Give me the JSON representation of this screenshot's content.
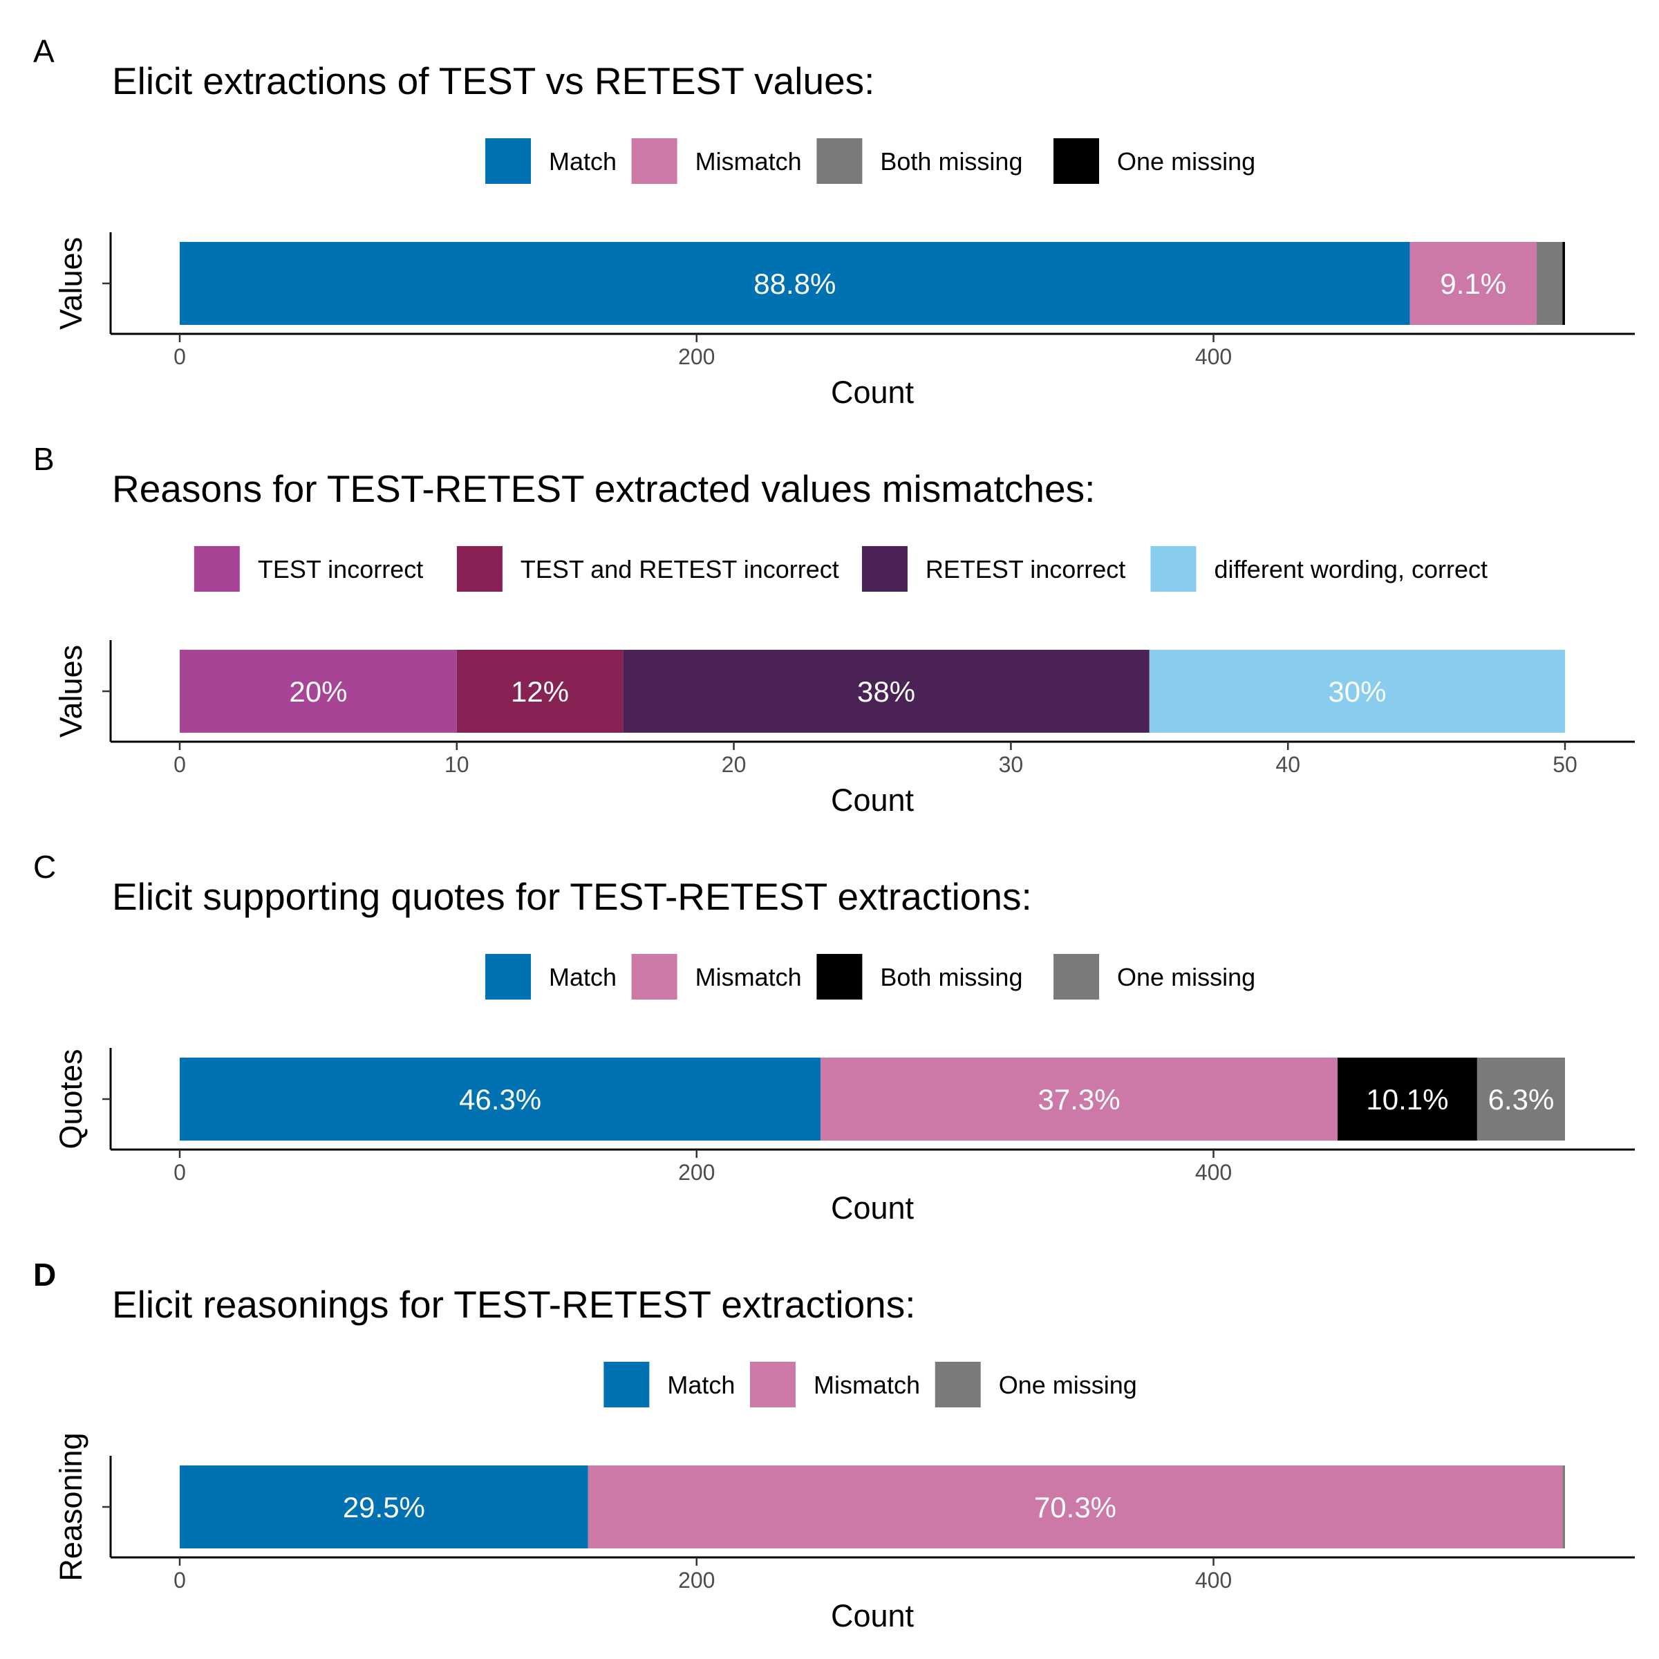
{
  "chart_data": [
    {
      "type": "bar",
      "orientation": "horizontal-stacked",
      "tag": "A",
      "title": "Elicit extractions of TEST vs RETEST values:",
      "category_label": "Values",
      "xlabel": "Count",
      "xlim": [
        0,
        550
      ],
      "xticks": [
        "0",
        "200",
        "400"
      ],
      "xtick_values": [
        0,
        200,
        400
      ],
      "legend_position": "top",
      "legend": [
        {
          "name": "Match",
          "color": "#0072B2"
        },
        {
          "name": "Mismatch",
          "color": "#CC79A7"
        },
        {
          "name": "Both missing",
          "color": "#7A7A7A"
        },
        {
          "name": "One missing",
          "color": "#000000"
        }
      ],
      "segments": [
        {
          "name": "Match",
          "value": 476,
          "label": "88.8%",
          "color": "#0072B2"
        },
        {
          "name": "Mismatch",
          "value": 49,
          "label": "9.1%",
          "color": "#CC79A7"
        },
        {
          "name": "Both missing",
          "value": 10,
          "label": "",
          "color": "#7A7A7A"
        },
        {
          "name": "One missing",
          "value": 1,
          "label": "",
          "color": "#000000"
        }
      ]
    },
    {
      "type": "bar",
      "orientation": "horizontal-stacked",
      "tag": "B",
      "title": "Reasons for TEST-RETEST extracted values mismatches:",
      "category_label": "Values",
      "xlabel": "Count",
      "xlim": [
        0,
        52.5
      ],
      "xticks": [
        "0",
        "10",
        "20",
        "30",
        "40",
        "50"
      ],
      "xtick_values": [
        0,
        10,
        20,
        30,
        40,
        50
      ],
      "legend_position": "top",
      "legend": [
        {
          "name": "TEST incorrect",
          "color": "#A84495"
        },
        {
          "name": "TEST and RETEST incorrect",
          "color": "#882255"
        },
        {
          "name": "RETEST incorrect",
          "color": "#4A2255"
        },
        {
          "name": "different wording, correct",
          "color": "#88CCEE"
        }
      ],
      "segments": [
        {
          "name": "TEST incorrect",
          "value": 10,
          "label": "20%",
          "color": "#A84495"
        },
        {
          "name": "TEST and RETEST incorrect",
          "value": 6,
          "label": "12%",
          "color": "#882255"
        },
        {
          "name": "RETEST incorrect",
          "value": 19,
          "label": "38%",
          "color": "#4A2255"
        },
        {
          "name": "different wording, correct",
          "value": 15,
          "label": "30%",
          "color": "#88CCEE"
        }
      ]
    },
    {
      "type": "bar",
      "orientation": "horizontal-stacked",
      "tag": "C",
      "title": "Elicit supporting quotes for TEST-RETEST extractions:",
      "category_label": "Quotes",
      "xlabel": "Count",
      "xlim": [
        0,
        550
      ],
      "xticks": [
        "0",
        "200",
        "400"
      ],
      "xtick_values": [
        0,
        200,
        400
      ],
      "legend_position": "top",
      "legend": [
        {
          "name": "Match",
          "color": "#0072B2"
        },
        {
          "name": "Mismatch",
          "color": "#CC79A7"
        },
        {
          "name": "Both missing",
          "color": "#000000"
        },
        {
          "name": "One missing",
          "color": "#7A7A7A"
        }
      ],
      "segments": [
        {
          "name": "Match",
          "value": 248,
          "label": "46.3%",
          "color": "#0072B2"
        },
        {
          "name": "Mismatch",
          "value": 200,
          "label": "37.3%",
          "color": "#CC79A7"
        },
        {
          "name": "Both missing",
          "value": 54,
          "label": "10.1%",
          "color": "#000000"
        },
        {
          "name": "One missing",
          "value": 34,
          "label": "6.3%",
          "color": "#7A7A7A"
        }
      ]
    },
    {
      "type": "bar",
      "orientation": "horizontal-stacked",
      "tag": "D",
      "title": "Elicit reasonings for TEST-RETEST extractions:",
      "category_label": "Reasoning",
      "xlabel": "Count",
      "xlim": [
        0,
        550
      ],
      "xticks": [
        "0",
        "200",
        "400"
      ],
      "xtick_values": [
        0,
        200,
        400
      ],
      "legend_position": "top",
      "legend": [
        {
          "name": "Match",
          "color": "#0072B2"
        },
        {
          "name": "Mismatch",
          "color": "#CC79A7"
        },
        {
          "name": "One missing",
          "color": "#7A7A7A"
        }
      ],
      "segments": [
        {
          "name": "Match",
          "value": 158,
          "label": "29.5%",
          "color": "#0072B2"
        },
        {
          "name": "Mismatch",
          "value": 377,
          "label": "70.3%",
          "color": "#CC79A7"
        },
        {
          "name": "One missing",
          "value": 1,
          "label": "",
          "color": "#7A7A7A"
        }
      ]
    }
  ]
}
